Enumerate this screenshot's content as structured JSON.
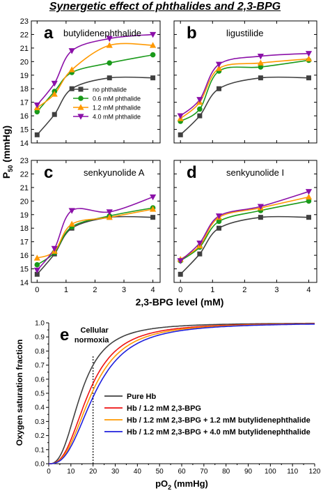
{
  "figure_title": "Synergetic effect of phthalides and 2,3-BPG",
  "top_ylabel_main": "P",
  "top_ylabel_sub": "50",
  "top_ylabel_unit": " (mmHg)",
  "top_xlabel": "2,3-BPG level (mM)",
  "colors": {
    "black": "#404040",
    "green": "#1a9a1a",
    "orange": "#ff9900",
    "purple": "#8b10a8",
    "red": "#ee1111",
    "blue": "#1f1fdd",
    "axis": "#000000"
  },
  "chart_data": [
    {
      "panel": "a",
      "subtitle": "butylidenephthalide",
      "type": "line",
      "x": [
        0,
        0.6,
        1.2,
        2.5,
        4
      ],
      "xticks": [
        "0",
        "1",
        "2",
        "3",
        "4"
      ],
      "yticks": [
        "14",
        "15",
        "16",
        "17",
        "18",
        "19",
        "20",
        "21",
        "22",
        "23"
      ],
      "xlim": [
        -0.2,
        4.25
      ],
      "ylim": [
        14,
        23
      ],
      "grid": false,
      "legend": "center",
      "series": [
        {
          "name": "no phthalide",
          "marker": "square",
          "color": "black",
          "values": [
            14.6,
            16.1,
            18.0,
            18.8,
            18.8
          ]
        },
        {
          "name": "0.6 mM phthalide",
          "marker": "circle",
          "color": "green",
          "values": [
            16.3,
            17.8,
            19.2,
            19.9,
            20.5
          ]
        },
        {
          "name": "1.2 mM phthalide",
          "marker": "triangle-up",
          "color": "orange",
          "values": [
            16.6,
            17.6,
            19.4,
            21.2,
            21.2
          ]
        },
        {
          "name": "4.0 mM phthalide",
          "marker": "triangle-down",
          "color": "purple",
          "values": [
            16.8,
            18.4,
            20.8,
            21.7,
            22.0
          ]
        }
      ]
    },
    {
      "panel": "b",
      "subtitle": "ligustilide",
      "type": "line",
      "x": [
        0,
        0.6,
        1.2,
        2.5,
        4
      ],
      "xticks": [
        "0",
        "1",
        "2",
        "3",
        "4"
      ],
      "yticks": [
        "14",
        "15",
        "16",
        "17",
        "18",
        "19",
        "20",
        "21",
        "22",
        "23"
      ],
      "xlim": [
        -0.2,
        4.25
      ],
      "ylim": [
        14,
        23
      ],
      "grid": false,
      "series": [
        {
          "marker": "square",
          "color": "black",
          "values": [
            14.6,
            16.0,
            18.0,
            18.8,
            18.8
          ]
        },
        {
          "marker": "circle",
          "color": "green",
          "values": [
            15.6,
            16.5,
            19.3,
            19.6,
            20.1
          ]
        },
        {
          "marker": "triangle-up",
          "color": "orange",
          "values": [
            15.8,
            17.0,
            19.5,
            19.9,
            20.2
          ]
        },
        {
          "marker": "triangle-down",
          "color": "purple",
          "values": [
            16.0,
            17.2,
            19.8,
            20.4,
            20.6
          ]
        }
      ]
    },
    {
      "panel": "c",
      "subtitle": "senkyunolide A",
      "type": "line",
      "x": [
        0,
        0.6,
        1.2,
        2.5,
        4
      ],
      "xticks": [
        "0",
        "1",
        "2",
        "3",
        "4"
      ],
      "yticks": [
        "14",
        "15",
        "16",
        "17",
        "18",
        "19",
        "20",
        "21",
        "22",
        "23"
      ],
      "xlim": [
        -0.2,
        4.25
      ],
      "ylim": [
        14,
        23
      ],
      "grid": false,
      "series": [
        {
          "marker": "square",
          "color": "black",
          "values": [
            14.6,
            16.1,
            18.0,
            18.8,
            18.8
          ]
        },
        {
          "marker": "circle",
          "color": "green",
          "values": [
            15.3,
            16.2,
            18.1,
            18.9,
            19.5
          ]
        },
        {
          "marker": "triangle-up",
          "color": "orange",
          "values": [
            15.8,
            16.3,
            18.3,
            18.8,
            19.4
          ]
        },
        {
          "marker": "triangle-down",
          "color": "purple",
          "values": [
            14.9,
            16.5,
            19.3,
            19.2,
            20.3
          ]
        }
      ]
    },
    {
      "panel": "d",
      "subtitle": "senkyunolide I",
      "type": "line",
      "x": [
        0,
        0.6,
        1.2,
        2.5,
        4
      ],
      "xticks": [
        "0",
        "1",
        "2",
        "3",
        "4"
      ],
      "yticks": [
        "14",
        "15",
        "16",
        "17",
        "18",
        "19",
        "20",
        "21",
        "22",
        "23"
      ],
      "xlim": [
        -0.2,
        4.25
      ],
      "ylim": [
        14,
        23
      ],
      "grid": false,
      "series": [
        {
          "marker": "square",
          "color": "black",
          "values": [
            14.6,
            16.1,
            18.0,
            18.8,
            18.8
          ]
        },
        {
          "marker": "circle",
          "color": "green",
          "values": [
            15.6,
            16.6,
            18.5,
            19.3,
            20.0
          ]
        },
        {
          "marker": "triangle-up",
          "color": "orange",
          "values": [
            15.7,
            16.7,
            18.8,
            19.5,
            20.3
          ]
        },
        {
          "marker": "triangle-down",
          "color": "purple",
          "values": [
            15.6,
            16.9,
            18.9,
            19.6,
            20.7
          ]
        }
      ]
    },
    {
      "panel": "e",
      "type": "line",
      "xlabel_main": "pO",
      "xlabel_sub": "2",
      "xlabel_unit": " (mmHg)",
      "ylabel": "Oxygen saturation fraction",
      "xlim": [
        0,
        120
      ],
      "ylim": [
        0,
        1.0
      ],
      "grid": false,
      "legend": "bottom-right",
      "xticks": [
        "0",
        "10",
        "20",
        "30",
        "40",
        "50",
        "60",
        "70",
        "80",
        "90",
        "100",
        "110",
        "120"
      ],
      "yticks": [
        "0.0",
        "0.1",
        "0.2",
        "0.3",
        "0.4",
        "0.5",
        "0.6",
        "0.7",
        "0.8",
        "0.9",
        "1.0"
      ],
      "annotation_lines": [
        "Cellular",
        "normoxia"
      ],
      "annotation_x": 20,
      "series": [
        {
          "name": "Pure Hb",
          "color": "black",
          "p50": 14.6,
          "hill_n": 2.7
        },
        {
          "name": "Hb / 1.2 mM 2,3-BPG",
          "color": "red",
          "p50": 18.0,
          "hill_n": 2.7
        },
        {
          "name": "Hb / 1.2 mM 2,3-BPG + 1.2 mM butylidenephthalide",
          "color": "orange",
          "p50": 19.4,
          "hill_n": 2.7
        },
        {
          "name": "Hb / 1.2 mM 2,3-BPG + 4.0 mM butylidenephthalide",
          "color": "blue",
          "p50": 20.8,
          "hill_n": 2.7
        }
      ]
    }
  ]
}
